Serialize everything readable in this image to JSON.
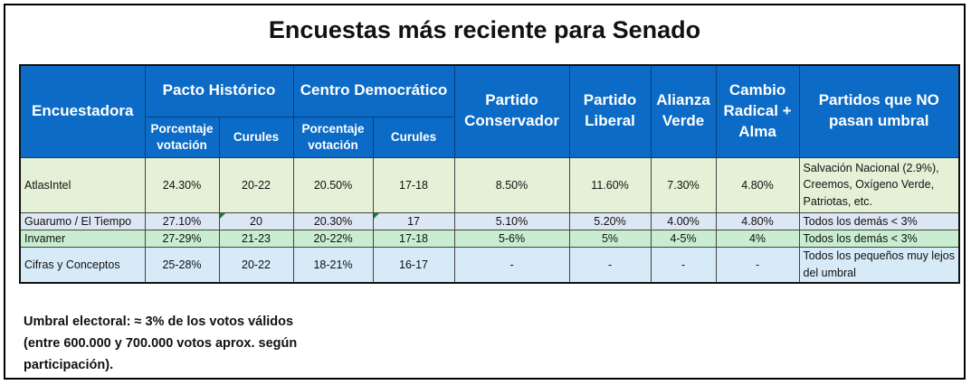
{
  "title": "Encuestas más reciente para Senado",
  "header": {
    "pollster": "Encuestadora",
    "pacto": "Pacto Histórico",
    "centro": "Centro Democrático",
    "conservador": "Partido Conservador",
    "liberal": "Partido Liberal",
    "alianza": "Alianza Verde",
    "cambio": "Cambio Radical + Alma",
    "no_umbral": "Partidos que NO pasan umbral",
    "pct_label": "Porcentaje votación",
    "curules_label": "Curules"
  },
  "rows": [
    {
      "pollster": "AtlasIntel",
      "pacto_pct": "24.30%",
      "pacto_cur": "20-22",
      "centro_pct": "20.50%",
      "centro_cur": "17-18",
      "conservador": "8.50%",
      "liberal": "11.60%",
      "alianza": "7.30%",
      "cambio": "4.80%",
      "no_umbral": "Salvación Nacional (2.9%), Creemos, Oxígeno Verde, Patriotas, etc."
    },
    {
      "pollster": "Guarumo / El Tiempo",
      "pacto_pct": "27.10%",
      "pacto_cur": "20",
      "centro_pct": "20.30%",
      "centro_cur": "17",
      "conservador": "5.10%",
      "liberal": "5.20%",
      "alianza": "4.00%",
      "cambio": "4.80%",
      "no_umbral": "Todos los demás < 3%"
    },
    {
      "pollster": "Invamer",
      "pacto_pct": "27-29%",
      "pacto_cur": "21-23",
      "centro_pct": "20-22%",
      "centro_cur": "17-18",
      "conservador": "5-6%",
      "liberal": "5%",
      "alianza": "4-5%",
      "cambio": "4%",
      "no_umbral": "Todos los demás < 3%"
    },
    {
      "pollster": "Cifras y Conceptos",
      "pacto_pct": "25-28%",
      "pacto_cur": "20-22",
      "centro_pct": "18-21%",
      "centro_cur": "16-17",
      "conservador": "-",
      "liberal": "-",
      "alianza": "-",
      "cambio": "-",
      "no_umbral": "Todos los pequeños muy lejos del umbral"
    }
  ],
  "note": {
    "line1": "Umbral electoral: ≈ 3% de los votos válidos",
    "line2": "(entre 600.000 y 700.000 votos aprox. según",
    "line3": "participación)."
  }
}
